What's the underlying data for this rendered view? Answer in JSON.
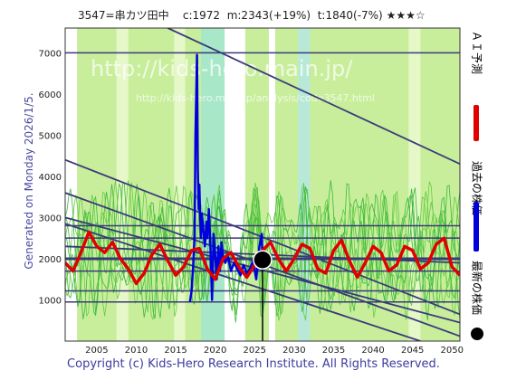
{
  "header": {
    "code_name": "3547=串カツ田中",
    "current": "c:1972",
    "model": "m:2343(+19%)",
    "target": "t:1840(-7%)",
    "stars": "★★★☆"
  },
  "generated_text": "Generated on Monday 2026/1/5.",
  "footer": "Copyright (c) Kids-Hero Research Institute. All Rights Reserved.",
  "watermark": {
    "line1": "http://kids-hero.main.jp/",
    "line2": "http://kids-hero.main.jp/analysis/code3547.html"
  },
  "legend": [
    {
      "label": "ＡＩ予測",
      "color": "#e00000"
    },
    {
      "label": "過去の株価",
      "color": "#0000dd"
    },
    {
      "label": "最新の株価",
      "color": "#000000"
    }
  ],
  "chart_data": {
    "type": "line",
    "xlim": [
      2001,
      2051
    ],
    "ylim": [
      0,
      7600
    ],
    "x_ticks": [
      2005,
      2010,
      2015,
      2020,
      2025,
      2030,
      2035,
      2040,
      2045,
      2050
    ],
    "y_ticks": [
      1000,
      2000,
      3000,
      4000,
      5000,
      6000,
      7000
    ],
    "horizontal_levels": [
      950,
      1220,
      1700,
      2000,
      2500,
      2800,
      7000
    ],
    "trend_lines": [
      {
        "x": [
          2014,
          2051
        ],
        "y": [
          7600,
          4300
        ]
      },
      {
        "x": [
          2001,
          2051
        ],
        "y": [
          4400,
          650
        ]
      },
      {
        "x": [
          2001,
          2051
        ],
        "y": [
          3600,
          120
        ]
      },
      {
        "x": [
          2001,
          2046
        ],
        "y": [
          2850,
          0
        ]
      },
      {
        "x": [
          2001,
          2051
        ],
        "y": [
          3000,
          450
        ]
      },
      {
        "x": [
          2001,
          2051
        ],
        "y": [
          2300,
          1900
        ]
      }
    ],
    "series": [
      {
        "name": "過去の株価",
        "color": "#0000dd",
        "x": [
          2016.8,
          2017.0,
          2017.2,
          2017.4,
          2017.5,
          2017.7,
          2017.8,
          2017.9,
          2018.0,
          2018.1,
          2018.2,
          2018.3,
          2018.5,
          2018.7,
          2018.9,
          2019.0,
          2019.2,
          2019.4,
          2019.6,
          2019.8,
          2020.0,
          2020.2,
          2020.4,
          2020.6,
          2020.8,
          2021.0,
          2021.3,
          2021.6,
          2022.0,
          2022.4,
          2022.8,
          2023.2,
          2023.6,
          2024.0,
          2024.4,
          2024.8,
          2025.2,
          2025.6,
          2025.9,
          2026.0
        ],
        "y": [
          950,
          1200,
          1800,
          2600,
          5000,
          6950,
          4200,
          3200,
          3800,
          3000,
          2500,
          3100,
          2700,
          2300,
          2900,
          2500,
          3200,
          2300,
          1000,
          2600,
          2100,
          1500,
          2300,
          1700,
          2400,
          2000,
          1900,
          2100,
          1700,
          1900,
          1750,
          1600,
          1850,
          1650,
          1750,
          1950,
          1500,
          2300,
          2600,
          1972
        ]
      },
      {
        "name": "ＡＩ予測",
        "color": "#e00000",
        "x": [
          2001,
          2002,
          2003,
          2004,
          2005,
          2006,
          2007,
          2008,
          2009,
          2010,
          2011,
          2012,
          2013,
          2014,
          2015,
          2016,
          2017,
          2018,
          2019,
          2020,
          2021,
          2022,
          2023,
          2024,
          2025,
          2026,
          2027,
          2028,
          2029,
          2030,
          2031,
          2032,
          2033,
          2034,
          2035,
          2036,
          2037,
          2038,
          2039,
          2040,
          2041,
          2042,
          2043,
          2044,
          2045,
          2046,
          2047,
          2048,
          2049,
          2050,
          2051
        ],
        "y": [
          1900,
          1700,
          2150,
          2650,
          2300,
          2150,
          2400,
          2000,
          1750,
          1400,
          1650,
          2100,
          2350,
          1950,
          1600,
          1800,
          2200,
          2250,
          1750,
          1500,
          2000,
          2150,
          1800,
          1550,
          1850,
          2200,
          2400,
          2000,
          1700,
          2000,
          2350,
          2250,
          1750,
          1650,
          2200,
          2450,
          1950,
          1550,
          1900,
          2300,
          2150,
          1700,
          1850,
          2300,
          2200,
          1750,
          1900,
          2350,
          2500,
          1800,
          1600
        ]
      }
    ],
    "latest_point": {
      "x": 2026.0,
      "y": 1972
    }
  }
}
